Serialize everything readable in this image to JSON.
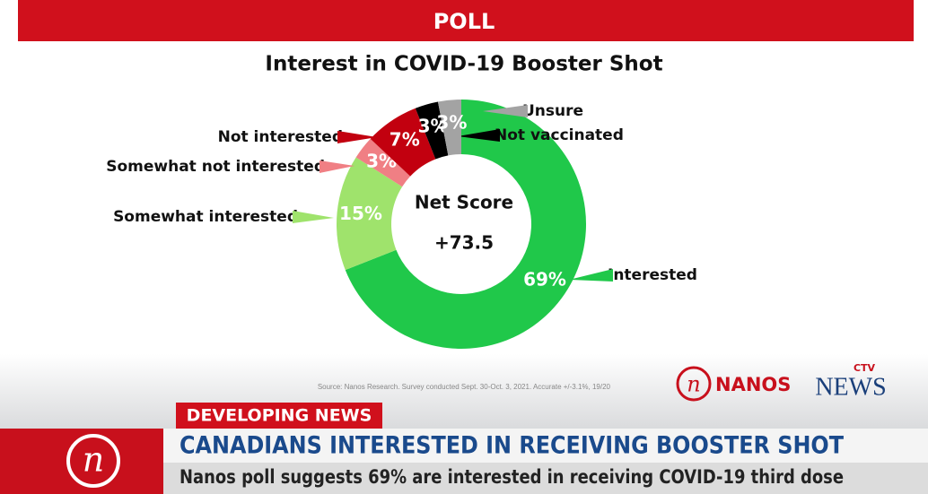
{
  "header": {
    "tag": "POLL"
  },
  "chart_data": {
    "type": "pie",
    "donut": true,
    "title": "Interest in COVID-19 Booster Shot",
    "categories": [
      "Interested",
      "Somewhat interested",
      "Somewhat not interested",
      "Not interested",
      "Not vaccinated",
      "Unsure"
    ],
    "values": [
      69,
      15,
      3,
      7,
      3,
      3
    ],
    "value_labels": [
      "69%",
      "15%",
      "3%",
      "7%",
      "3%",
      "3%"
    ],
    "colors": [
      "#20c84a",
      "#9fe36c",
      "#f07f84",
      "#c2000f",
      "#000000",
      "#a3a3a3"
    ],
    "center_label": "Net Score",
    "center_value": "+73.5",
    "source": "Source: Nanos Research. Survey conducted Sept. 30-Oct. 3, 2021. Accurate +/-3.1%, 19/20"
  },
  "logos": {
    "nanos": "NANOS",
    "ctv": "CTV",
    "news": "NEWS"
  },
  "ticker": {
    "tag": "DEVELOPING NEWS",
    "headline": "CANADIANS INTERESTED IN RECEIVING BOOSTER SHOT",
    "subheadline": "Nanos poll suggests 69% are interested in receiving COVID-19 third dose"
  }
}
